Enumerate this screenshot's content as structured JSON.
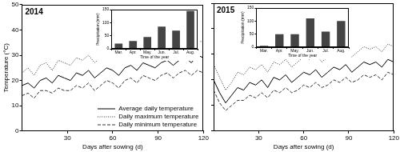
{
  "chart_data": [
    {
      "type": "line",
      "title": "2014",
      "xlabel": "Days after sowing (d)",
      "ylabel": "Temperature (°C)",
      "x": [
        0,
        4,
        8,
        12,
        16,
        20,
        24,
        28,
        32,
        36,
        40,
        44,
        48,
        52,
        56,
        60,
        64,
        68,
        72,
        76,
        80,
        84,
        88,
        92,
        96,
        100,
        104,
        108,
        112,
        116,
        120
      ],
      "series": [
        {
          "name": "Average daily temperature",
          "color": "#000000",
          "line_style": "solid",
          "values": [
            18,
            19,
            17,
            20,
            21,
            19,
            22,
            21,
            20,
            23,
            22,
            24,
            21,
            23,
            25,
            24,
            22,
            25,
            26,
            24,
            27,
            26,
            25,
            27,
            28,
            26,
            28,
            29,
            27,
            30,
            29
          ]
        },
        {
          "name": "Daily maximum temperature",
          "color": "#333333",
          "line_style": "dotted",
          "values": [
            23,
            25,
            22,
            26,
            27,
            24,
            28,
            27,
            26,
            29,
            28,
            30,
            27,
            29,
            31,
            30,
            28,
            31,
            32,
            30,
            33,
            32,
            31,
            33,
            34,
            32,
            34,
            35,
            33,
            36,
            35
          ]
        },
        {
          "name": "Daily minimum temperature",
          "color": "#333333",
          "line_style": "dashed",
          "values": [
            14,
            15,
            13,
            16,
            16,
            15,
            17,
            16,
            16,
            18,
            17,
            19,
            16,
            18,
            20,
            19,
            17,
            20,
            21,
            19,
            22,
            21,
            20,
            22,
            23,
            21,
            23,
            24,
            22,
            24,
            23
          ]
        }
      ],
      "xlim": [
        0,
        120
      ],
      "xticks": [
        30,
        60,
        90,
        120
      ],
      "ylim": [
        0,
        50
      ],
      "yticks": [
        0,
        10,
        20,
        30,
        40,
        50
      ],
      "grid": false,
      "legend": "lower right"
    },
    {
      "type": "bar",
      "xlabel": "Time of the year",
      "ylabel": "Precipitation (mm)",
      "categories": [
        "Mar.",
        "Apr.",
        "May.",
        "Jun.",
        "Jul.",
        "Aug."
      ],
      "values": [
        20,
        30,
        45,
        85,
        70,
        145
      ],
      "color": "#444444",
      "ylim": [
        0,
        150
      ],
      "yticks": [
        0,
        50,
        100,
        150
      ],
      "grid": false
    },
    {
      "type": "line",
      "title": "2015",
      "xlabel": "Days after sowing (d)",
      "x": [
        0,
        4,
        8,
        12,
        16,
        20,
        24,
        28,
        32,
        36,
        40,
        44,
        48,
        52,
        56,
        60,
        64,
        68,
        72,
        76,
        80,
        84,
        88,
        92,
        96,
        100,
        104,
        108,
        112,
        116,
        120
      ],
      "series": [
        {
          "color": "#000000",
          "line_style": "solid",
          "values": [
            20,
            15,
            11,
            14,
            17,
            16,
            19,
            18,
            20,
            17,
            21,
            20,
            22,
            19,
            21,
            23,
            22,
            24,
            21,
            23,
            25,
            24,
            26,
            23,
            25,
            27,
            26,
            27,
            25,
            28,
            27
          ]
        },
        {
          "color": "#333333",
          "line_style": "dotted",
          "values": [
            26,
            21,
            16,
            19,
            23,
            22,
            25,
            24,
            26,
            23,
            27,
            26,
            28,
            25,
            27,
            29,
            28,
            30,
            27,
            29,
            31,
            30,
            32,
            29,
            31,
            33,
            32,
            33,
            31,
            34,
            33
          ]
        },
        {
          "color": "#333333",
          "line_style": "dashed",
          "values": [
            16,
            11,
            8,
            10,
            12,
            12,
            14,
            13,
            15,
            13,
            16,
            15,
            17,
            15,
            16,
            18,
            17,
            19,
            17,
            18,
            20,
            19,
            21,
            19,
            20,
            22,
            21,
            22,
            20,
            23,
            22
          ]
        }
      ],
      "xlim": [
        0,
        120
      ],
      "xticks": [
        30,
        60,
        90,
        120
      ],
      "ylim": [
        0,
        50
      ],
      "yticks": [
        0,
        10,
        20,
        30,
        40,
        50
      ],
      "grid": false,
      "tick_labels": "x"
    },
    {
      "type": "bar",
      "xlabel": "Time of the year",
      "ylabel": "Precipitation (mm)",
      "categories": [
        "Mar.",
        "Apr.",
        "May.",
        "Jun.",
        "Jul.",
        "Aug."
      ],
      "values": [
        5,
        50,
        50,
        110,
        60,
        100
      ],
      "color": "#444444",
      "ylim": [
        0,
        150
      ],
      "yticks": [
        0,
        50,
        100,
        150
      ],
      "grid": false
    }
  ]
}
